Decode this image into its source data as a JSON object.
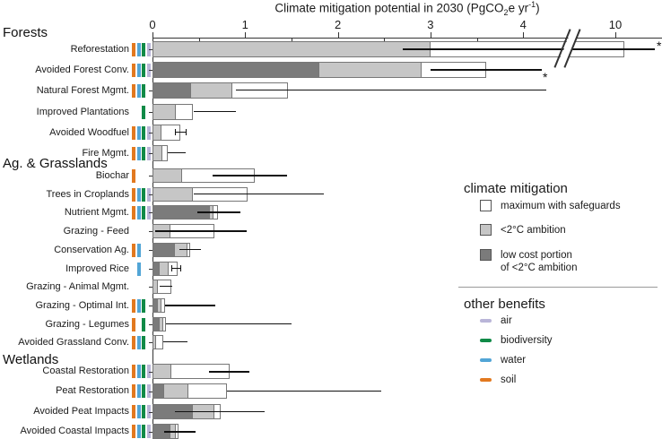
{
  "title": {
    "pre": "Climate mitigation potential in 2030 (PgCO",
    "sub": "2",
    "mid": "e yr",
    "sup": "-1",
    "post": ")"
  },
  "colors": {
    "soil": "#E2791F",
    "water": "#52A5D6",
    "biodiversity": "#108A47",
    "air": "#B9B5D8",
    "light": "#C6C6C6",
    "dark": "#7B7B7B",
    "white": "#FFFFFF"
  },
  "legend": {
    "climate": {
      "title": "climate mitigation",
      "items": [
        {
          "label": "maximum with safeguards",
          "fill": "white"
        },
        {
          "label": "<2°C ambition",
          "fill": "light"
        },
        {
          "label": "low cost portion\nof <2°C ambition",
          "fill": "dark"
        }
      ]
    },
    "benefits": {
      "title": "other benefits",
      "items": [
        {
          "label": "air",
          "color_key": "air"
        },
        {
          "label": "biodiversity",
          "color_key": "biodiversity"
        },
        {
          "label": "water",
          "color_key": "water"
        },
        {
          "label": "soil",
          "color_key": "soil"
        }
      ]
    }
  },
  "chart_data": {
    "type": "bar",
    "orientation": "horizontal",
    "title": "Climate mitigation potential in 2030 (PgCO2e yr-1)",
    "x_ticks": [
      0,
      1,
      2,
      3,
      4,
      10
    ],
    "x_minor_ticks": [
      0.5,
      1.5,
      2.5,
      3.5
    ],
    "axis_break_between": [
      4,
      10
    ],
    "series_legend": [
      "maximum with safeguards",
      "<2C ambition",
      "low cost portion of <2C ambition"
    ],
    "benefit_order": [
      "soil",
      "water",
      "biodiversity",
      "air"
    ],
    "sections": [
      {
        "name": "Forests",
        "rows": [
          {
            "label": "Reforestation",
            "benefits": [
              "soil",
              "water",
              "biodiversity",
              "air"
            ],
            "low_cost": null,
            "ambition_2c": 3.0,
            "maximum": 10.1,
            "whisker": [
              2.7,
              null
            ],
            "asterisk": "right",
            "thick": true
          },
          {
            "label": "Avoided Forest Conv.",
            "benefits": [
              "soil",
              "water",
              "biodiversity",
              "air"
            ],
            "low_cost": 1.8,
            "ambition_2c": 2.9,
            "maximum": 3.6,
            "whisker": [
              3.0,
              4.2
            ],
            "thick": true
          },
          {
            "label": "Natural Forest Mgmt.",
            "benefits": [
              "soil",
              "water",
              "biodiversity"
            ],
            "low_cost": 0.42,
            "ambition_2c": 0.86,
            "maximum": 1.46,
            "whisker": [
              0.9,
              4.25
            ],
            "asterisk": "above"
          },
          {
            "label": "Improved Plantations",
            "benefits": [
              "biodiversity"
            ],
            "low_cost": null,
            "ambition_2c": 0.25,
            "maximum": 0.44,
            "whisker": [
              0.45,
              0.9
            ]
          },
          {
            "label": "Avoided Woodfuel",
            "benefits": [
              "soil",
              "water",
              "biodiversity",
              "air"
            ],
            "low_cost": null,
            "ambition_2c": 0.1,
            "maximum": 0.3,
            "whisker": [
              0.24,
              0.36
            ],
            "caps": true
          },
          {
            "label": "Fire Mgmt.",
            "benefits": [
              "soil",
              "water",
              "biodiversity",
              "air"
            ],
            "low_cost": null,
            "ambition_2c": 0.11,
            "maximum": 0.16,
            "whisker": [
              0.16,
              0.36
            ]
          }
        ]
      },
      {
        "name": "Ag. & Grasslands",
        "rows": [
          {
            "label": "Biochar",
            "benefits": [
              "soil"
            ],
            "low_cost": null,
            "ambition_2c": 0.32,
            "maximum": 1.1,
            "whisker": [
              0.65,
              1.45
            ],
            "thick": true
          },
          {
            "label": "Trees in Croplands",
            "benefits": [
              "soil",
              "water",
              "biodiversity",
              "air"
            ],
            "low_cost": null,
            "ambition_2c": 0.44,
            "maximum": 1.03,
            "whisker": [
              0.45,
              1.85
            ]
          },
          {
            "label": "Nutrient Mgmt.",
            "benefits": [
              "soil",
              "water",
              "biodiversity",
              "air"
            ],
            "low_cost": 0.62,
            "ambition_2c": 0.66,
            "maximum": 0.71,
            "whisker": [
              0.48,
              0.95
            ],
            "thick": true
          },
          {
            "label": "Grazing - Feed",
            "benefits": [],
            "low_cost": null,
            "ambition_2c": 0.19,
            "maximum": 0.67,
            "whisker": [
              0.03,
              1.02
            ],
            "thick": true
          },
          {
            "label": "Conservation Ag.",
            "benefits": [
              "soil",
              "water"
            ],
            "low_cost": 0.24,
            "ambition_2c": 0.38,
            "maximum": 0.41,
            "whisker": [
              0.29,
              0.52
            ]
          },
          {
            "label": "Improved Rice",
            "benefits": [
              "water"
            ],
            "low_cost": 0.08,
            "ambition_2c": 0.17,
            "maximum": 0.27,
            "whisker": [
              0.2,
              0.3
            ],
            "caps": true
          },
          {
            "label": "Grazing - Animal Mgmt.",
            "benefits": [],
            "low_cost": null,
            "ambition_2c": 0.06,
            "maximum": 0.2,
            "whisker": [
              0.08,
              0.21
            ]
          },
          {
            "label": "Grazing - Optimal Int.",
            "benefits": [
              "soil",
              "water",
              "biodiversity"
            ],
            "low_cost": 0.06,
            "ambition_2c": 0.1,
            "maximum": 0.14,
            "whisker": [
              0.14,
              0.68
            ],
            "thick": true
          },
          {
            "label": "Grazing - Legumes",
            "benefits": [
              "soil",
              "biodiversity"
            ],
            "low_cost": 0.08,
            "ambition_2c": 0.12,
            "maximum": 0.15,
            "whisker": [
              0.15,
              1.5
            ]
          },
          {
            "label": "Avoided Grassland Conv.",
            "benefits": [
              "soil",
              "water",
              "biodiversity"
            ],
            "low_cost": null,
            "ambition_2c": 0.04,
            "maximum": 0.12,
            "whisker": [
              0.12,
              0.38
            ]
          }
        ]
      },
      {
        "name": "Wetlands",
        "rows": [
          {
            "label": "Coastal Restoration",
            "benefits": [
              "soil",
              "water",
              "biodiversity",
              "air"
            ],
            "low_cost": null,
            "ambition_2c": 0.2,
            "maximum": 0.83,
            "whisker": [
              0.61,
              1.05
            ],
            "thick": true
          },
          {
            "label": "Peat Restoration",
            "benefits": [
              "soil",
              "water",
              "biodiversity",
              "air"
            ],
            "low_cost": 0.13,
            "ambition_2c": 0.39,
            "maximum": 0.8,
            "whisker": [
              0.8,
              2.47
            ]
          },
          {
            "label": "Avoided Peat Impacts",
            "benefits": [
              "soil",
              "water",
              "biodiversity",
              "air"
            ],
            "low_cost": 0.44,
            "ambition_2c": 0.67,
            "maximum": 0.74,
            "whisker": [
              0.24,
              1.21
            ]
          },
          {
            "label": "Avoided Coastal Impacts",
            "benefits": [
              "soil",
              "water",
              "biodiversity",
              "air"
            ],
            "low_cost": 0.19,
            "ambition_2c": 0.25,
            "maximum": 0.28,
            "whisker": [
              0.13,
              0.46
            ],
            "thick": true
          }
        ]
      }
    ]
  }
}
